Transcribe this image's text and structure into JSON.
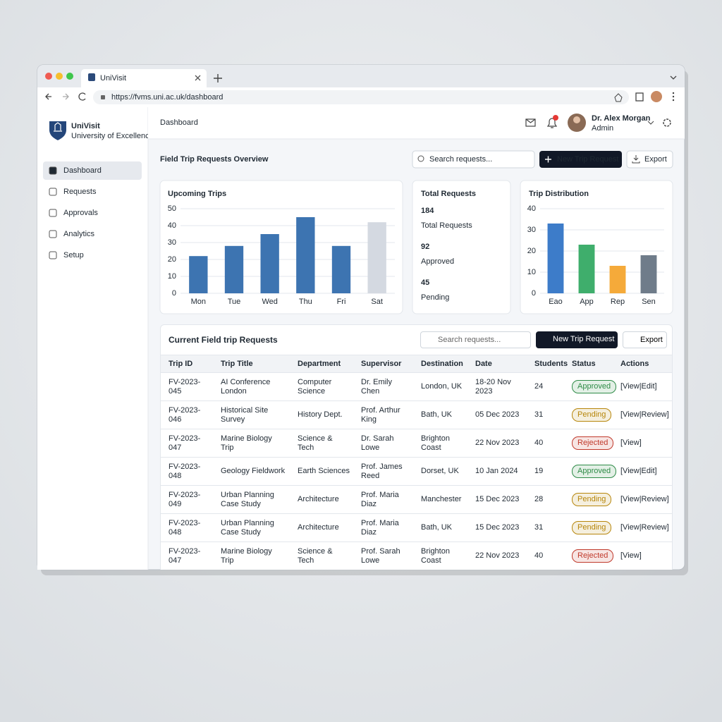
{
  "browser": {
    "tab_title": "UniVisit",
    "url": "https://fvms.uni.ac.uk/dashboard"
  },
  "sidebar": {
    "brand": "UniVisit",
    "tagline": "University of Excellence",
    "nav": [
      "Dashboard",
      "Requests",
      "Approvals",
      "Analytics",
      "Setup"
    ]
  },
  "header": {
    "title": "Dashboard",
    "user_name": "Dr. Alex Morgan",
    "user_role": "Admin"
  },
  "overview": {
    "title": "Field Trip Requests Overview",
    "search_placeholder": "Search requests...",
    "new_button": "New Trip Request",
    "export_button": "Export"
  },
  "stats": {
    "title": "Total Requests",
    "items": [
      {
        "value": 184,
        "label": "Total Requests"
      },
      {
        "value": 92,
        "label": "Approved"
      },
      {
        "value": 45,
        "label": "Pending"
      }
    ]
  },
  "chart_data": [
    {
      "type": "bar",
      "title": "Upcoming Trips",
      "categories": [
        "Mon",
        "Tue",
        "Wed",
        "Thu",
        "Fri",
        "Sat"
      ],
      "values": [
        22,
        28,
        35,
        45,
        28,
        42
      ],
      "colors": [
        "#3d74b1",
        "#3d74b1",
        "#3d74b1",
        "#3d74b1",
        "#3d74b1",
        "#d4d9e1"
      ],
      "ylim": [
        0,
        50
      ],
      "yticks": [
        0,
        10,
        20,
        30,
        40,
        50
      ],
      "grid": true
    },
    {
      "type": "bar",
      "title": "Trip Distribution",
      "categories": [
        "Eao",
        "App",
        "Rep",
        "Sen"
      ],
      "values": [
        33,
        23,
        13,
        18
      ],
      "colors": [
        "#3d7cc9",
        "#3fae6c",
        "#f5aa3a",
        "#6f7c8a"
      ],
      "ylim": [
        0,
        40
      ],
      "yticks": [
        0,
        10,
        20,
        30,
        40
      ],
      "grid": true
    }
  ],
  "table": {
    "title": "Current Field trip Requests",
    "search_placeholder": "Search requests...",
    "new_button": "New Trip Request",
    "export_button": "Export",
    "columns": [
      "Trip ID",
      "Trip Title",
      "Department",
      "Supervisor",
      "Destination",
      "Date",
      "Students",
      "Status",
      "Actions"
    ],
    "rows": [
      [
        "FV-2023-045",
        "AI Conference London",
        "Computer Science",
        "Dr. Emily Chen",
        "London, UK",
        "18-20 Nov 2023",
        "24",
        {
          "text": "Approved",
          "color": "#2e8b47"
        },
        "[View|Edit]"
      ],
      [
        "FV-2023-046",
        "Historical Site Survey",
        "History Dept.",
        "Prof. Arthur King",
        "Bath, UK",
        "05 Dec 2023",
        "31",
        {
          "text": "Pending",
          "color": "#b7860b"
        },
        "[View|Review]"
      ],
      [
        "FV-2023-047",
        "Marine Biology Trip",
        "Science & Tech",
        "Dr. Sarah Lowe",
        "Brighton Coast",
        "22 Nov 2023",
        "40",
        {
          "text": "Rejected",
          "color": "#c0392b"
        },
        "[View]"
      ],
      [
        "FV-2023-048",
        "Geology Fieldwork",
        "Earth Sciences",
        "Prof. James Reed",
        "Dorset, UK",
        "10 Jan 2024",
        "19",
        {
          "text": "Approved",
          "color": "#2e8b47"
        },
        "[View|Edit]"
      ],
      [
        "FV-2023-049",
        "Urban Planning Case Study",
        "Architecture",
        "Prof. Maria Diaz",
        "Manchester",
        "15 Dec 2023",
        "28",
        {
          "text": "Pending",
          "color": "#b7860b"
        },
        "[View|Review]"
      ],
      [
        "FV-2023-048",
        "Urban Planning Case Study",
        "Architecture",
        "Prof. Maria Diaz",
        "Bath, UK",
        "15 Dec 2023",
        "31",
        {
          "text": "Pending",
          "color": "#b7860b"
        },
        "[View|Review]"
      ],
      [
        "FV-2023-047",
        "Marine Biology Trip",
        "Science & Tech",
        "Prof. Sarah Lowe",
        "Brighton Coast",
        "22 Nov 2023",
        "40",
        {
          "text": "Rejected",
          "color": "#c0392b"
        },
        "[View]"
      ]
    ]
  }
}
